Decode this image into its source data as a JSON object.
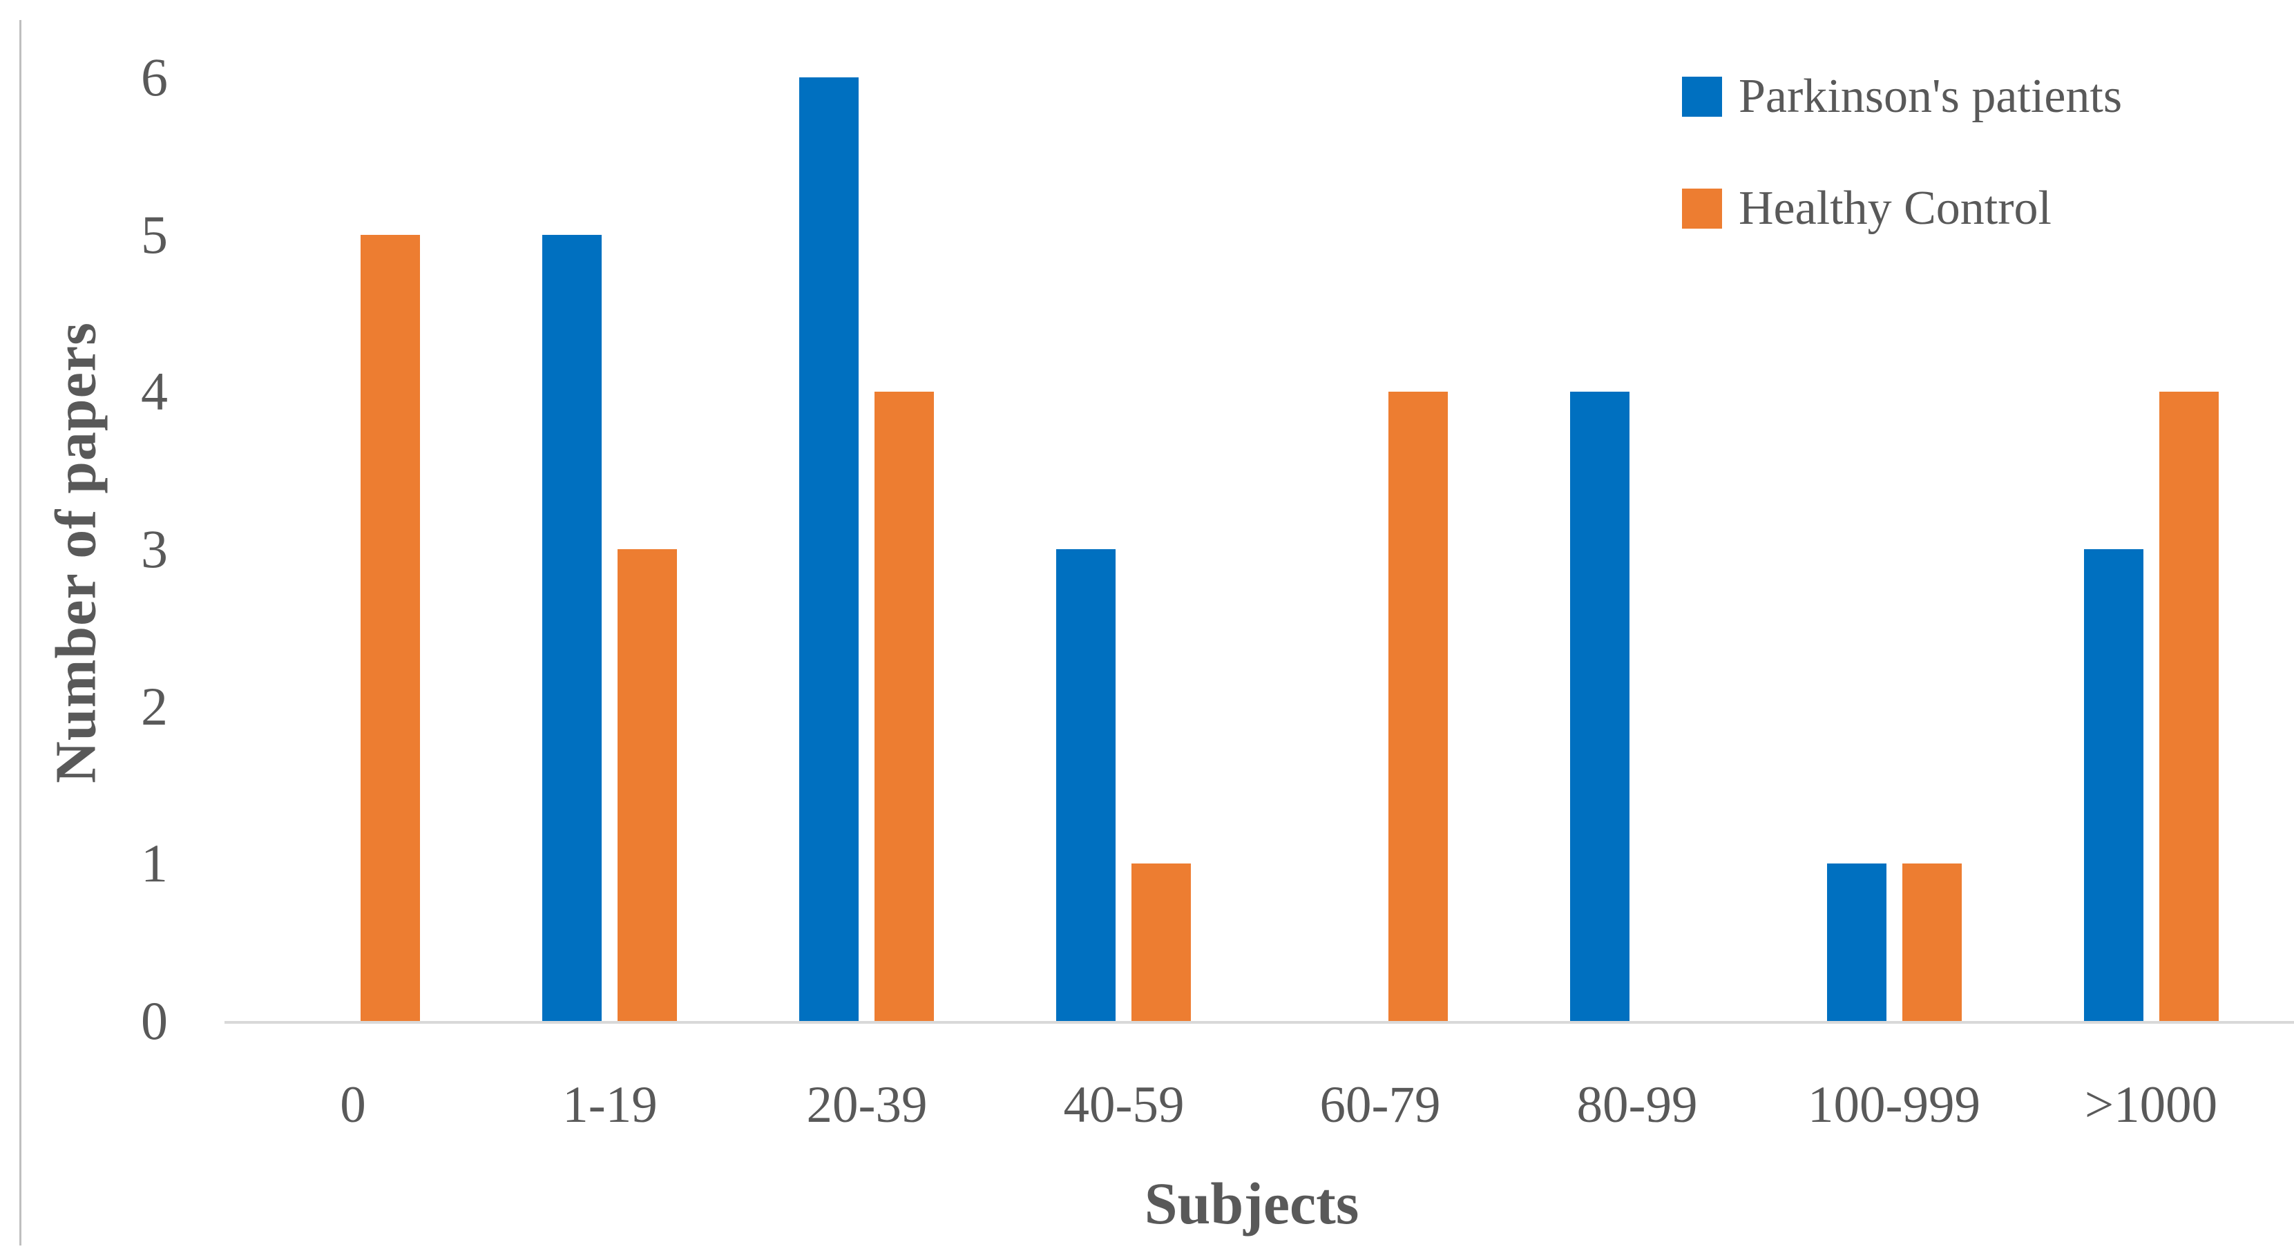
{
  "figure": {
    "background_color": "#FFFFFF",
    "frame_line_color": "#BFBFBF",
    "axis_line_color": "#D9D9D9",
    "text_color": "#595959"
  },
  "chart_data": {
    "type": "bar",
    "title": "",
    "xlabel": "Subjects",
    "ylabel": "Number of papers",
    "categories": [
      "0",
      "1-19",
      "20-39",
      "40-59",
      "60-79",
      "80-99",
      "100-999",
      ">1000"
    ],
    "series": [
      {
        "name": "Parkinson's patients",
        "color": "#0070C0",
        "values": [
          0,
          5,
          6,
          3,
          0,
          4,
          1,
          3
        ]
      },
      {
        "name": "Healthy Control",
        "color": "#ED7D31",
        "values": [
          5,
          3,
          4,
          1,
          4,
          0,
          1,
          4
        ]
      }
    ],
    "ylim": [
      0,
      6
    ],
    "yticks": [
      0,
      1,
      2,
      3,
      4,
      5,
      6
    ],
    "grid": "off",
    "legend_position": "top-right",
    "bar_baseline_axis_visible": true,
    "y_axis_line_visible": false
  }
}
